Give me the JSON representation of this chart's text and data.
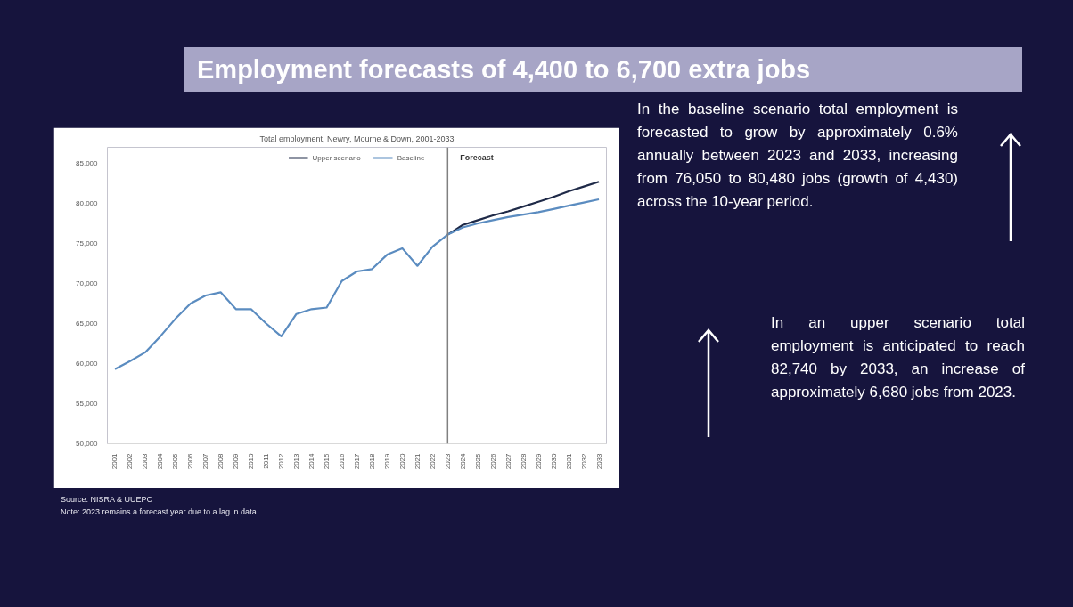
{
  "chart_data": {
    "type": "line",
    "title": "Employment forecasts of 4,400 to 6,700 extra jobs",
    "subtitle": "Total employment, Newry, Mourne & Down, 2001-2033",
    "x": [
      2001,
      2002,
      2003,
      2004,
      2005,
      2006,
      2007,
      2008,
      2009,
      2010,
      2011,
      2012,
      2013,
      2014,
      2015,
      2016,
      2017,
      2018,
      2019,
      2020,
      2021,
      2022,
      2023,
      2024,
      2025,
      2026,
      2027,
      2028,
      2029,
      2030,
      2031,
      2032,
      2033
    ],
    "series": [
      {
        "name": "Upper scenario",
        "color": "#1f2a48",
        "values": [
          null,
          null,
          null,
          null,
          null,
          null,
          null,
          null,
          null,
          null,
          null,
          null,
          null,
          null,
          null,
          null,
          null,
          null,
          null,
          null,
          null,
          null,
          76100,
          77300,
          77900,
          78500,
          79000,
          79600,
          80200,
          80800,
          81500,
          82100,
          82700
        ]
      },
      {
        "name": "Baseline",
        "color": "#5b8cc0",
        "values": [
          59300,
          60300,
          61400,
          63400,
          65600,
          67500,
          68500,
          68900,
          66800,
          66800,
          65000,
          63400,
          66200,
          66800,
          67000,
          70300,
          71500,
          71800,
          73600,
          74400,
          72200,
          74600,
          76100,
          77000,
          77500,
          77900,
          78300,
          78600,
          78900,
          79300,
          79700,
          80100,
          80500
        ]
      }
    ],
    "xlim": [
      2000.5,
      2033.5
    ],
    "xticks": [
      2001,
      2002,
      2003,
      2004,
      2005,
      2006,
      2007,
      2008,
      2009,
      2010,
      2011,
      2012,
      2013,
      2014,
      2015,
      2016,
      2017,
      2018,
      2019,
      2020,
      2021,
      2022,
      2023,
      2024,
      2025,
      2026,
      2027,
      2028,
      2029,
      2030,
      2031,
      2032,
      2033
    ],
    "ylim": [
      50000,
      87000
    ],
    "yticks": [
      {
        "value": 50000,
        "label": "50,000"
      },
      {
        "value": 55000,
        "label": "55,000"
      },
      {
        "value": 60000,
        "label": "60,000"
      },
      {
        "value": 65000,
        "label": "65,000"
      },
      {
        "value": 70000,
        "label": "70,000"
      },
      {
        "value": 75000,
        "label": "75,000"
      },
      {
        "value": 80000,
        "label": "80,000"
      },
      {
        "value": 85000,
        "label": "85,000"
      }
    ],
    "ref_lines": [
      {
        "axis": "x",
        "value": 2023,
        "label": "Forecast",
        "color": "#808080"
      }
    ],
    "grid": false,
    "legend": "top",
    "line_style": "solid",
    "marker": "none",
    "annotations": [
      "In the baseline scenario total employment is forecasted to grow by approximately 0.6% annually between 2023 and 2033, increasing from 76,050 to 80,480 jobs (growth of 4,430) across the 10-year period.",
      "In an upper scenario total employment is anticipated to reach 82,740 by 2033, an increase of approximately 6,680 jobs from 2023.",
      "Source: NISRA & UUEPC",
      "Note: 2023 remains a forecast year due to a lag in data"
    ]
  }
}
